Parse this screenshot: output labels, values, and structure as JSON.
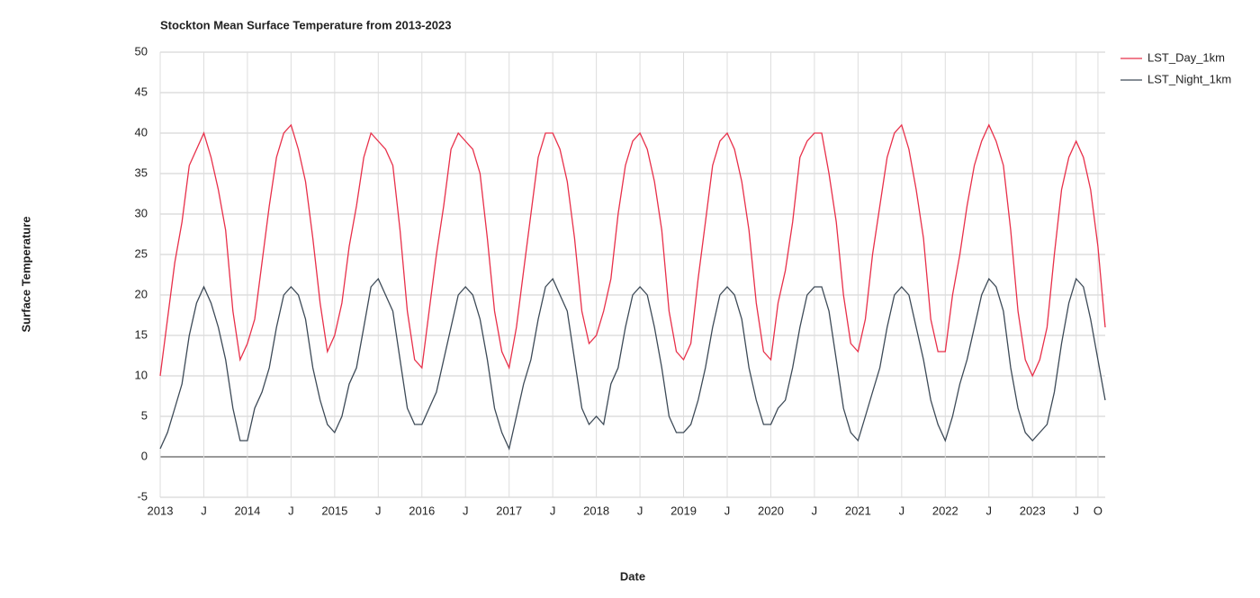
{
  "chart_data": {
    "type": "line",
    "title": "Stockton Mean Surface Temperature from 2013-2023",
    "x_label": "Date",
    "y_label": "Surface Temperature",
    "x": [
      "2013-01",
      "2013-02",
      "2013-03",
      "2013-04",
      "2013-05",
      "2013-06",
      "2013-07",
      "2013-08",
      "2013-09",
      "2013-10",
      "2013-11",
      "2013-12",
      "2014-01",
      "2014-02",
      "2014-03",
      "2014-04",
      "2014-05",
      "2014-06",
      "2014-07",
      "2014-08",
      "2014-09",
      "2014-10",
      "2014-11",
      "2014-12",
      "2015-01",
      "2015-02",
      "2015-03",
      "2015-04",
      "2015-05",
      "2015-06",
      "2015-07",
      "2015-08",
      "2015-09",
      "2015-10",
      "2015-11",
      "2015-12",
      "2016-01",
      "2016-02",
      "2016-03",
      "2016-04",
      "2016-05",
      "2016-06",
      "2016-07",
      "2016-08",
      "2016-09",
      "2016-10",
      "2016-11",
      "2016-12",
      "2017-01",
      "2017-02",
      "2017-03",
      "2017-04",
      "2017-05",
      "2017-06",
      "2017-07",
      "2017-08",
      "2017-09",
      "2017-10",
      "2017-11",
      "2017-12",
      "2018-01",
      "2018-02",
      "2018-03",
      "2018-04",
      "2018-05",
      "2018-06",
      "2018-07",
      "2018-08",
      "2018-09",
      "2018-10",
      "2018-11",
      "2018-12",
      "2019-01",
      "2019-02",
      "2019-03",
      "2019-04",
      "2019-05",
      "2019-06",
      "2019-07",
      "2019-08",
      "2019-09",
      "2019-10",
      "2019-11",
      "2019-12",
      "2020-01",
      "2020-02",
      "2020-03",
      "2020-04",
      "2020-05",
      "2020-06",
      "2020-07",
      "2020-08",
      "2020-09",
      "2020-10",
      "2020-11",
      "2020-12",
      "2021-01",
      "2021-02",
      "2021-03",
      "2021-04",
      "2021-05",
      "2021-06",
      "2021-07",
      "2021-08",
      "2021-09",
      "2021-10",
      "2021-11",
      "2021-12",
      "2022-01",
      "2022-02",
      "2022-03",
      "2022-04",
      "2022-05",
      "2022-06",
      "2022-07",
      "2022-08",
      "2022-09",
      "2022-10",
      "2022-11",
      "2022-12",
      "2023-01",
      "2023-02",
      "2023-03",
      "2023-04",
      "2023-05",
      "2023-06",
      "2023-07",
      "2023-08",
      "2023-09",
      "2023-10",
      "2023-11"
    ],
    "series": [
      {
        "name": "LST_Day_1km",
        "color": "#e8304a",
        "values": [
          10,
          17,
          24,
          29,
          36,
          38,
          40,
          37,
          33,
          28,
          18,
          12,
          14,
          17,
          24,
          31,
          37,
          40,
          41,
          38,
          34,
          27,
          19,
          13,
          15,
          19,
          26,
          31,
          37,
          40,
          39,
          38,
          36,
          28,
          18,
          12,
          11,
          18,
          25,
          31,
          38,
          40,
          39,
          38,
          35,
          27,
          18,
          13,
          11,
          16,
          23,
          30,
          37,
          40,
          40,
          38,
          34,
          27,
          18,
          14,
          15,
          18,
          22,
          30,
          36,
          39,
          40,
          38,
          34,
          28,
          18,
          13,
          12,
          14,
          22,
          29,
          36,
          39,
          40,
          38,
          34,
          28,
          19,
          13,
          12,
          19,
          23,
          29,
          37,
          39,
          40,
          40,
          35,
          29,
          20,
          14,
          13,
          17,
          25,
          31,
          37,
          40,
          41,
          38,
          33,
          27,
          17,
          13,
          13,
          20,
          25,
          31,
          36,
          39,
          41,
          39,
          36,
          28,
          18,
          12,
          10,
          12,
          16,
          25,
          33,
          37,
          39,
          37,
          33,
          26,
          16
        ]
      },
      {
        "name": "LST_Night_1km",
        "color": "#3d4a57",
        "values": [
          1,
          3,
          6,
          9,
          15,
          19,
          21,
          19,
          16,
          12,
          6,
          2,
          2,
          6,
          8,
          11,
          16,
          20,
          21,
          20,
          17,
          11,
          7,
          4,
          3,
          5,
          9,
          11,
          16,
          21,
          22,
          20,
          18,
          12,
          6,
          4,
          4,
          6,
          8,
          12,
          16,
          20,
          21,
          20,
          17,
          12,
          6,
          3,
          1,
          5,
          9,
          12,
          17,
          21,
          22,
          20,
          18,
          12,
          6,
          4,
          5,
          4,
          9,
          11,
          16,
          20,
          21,
          20,
          16,
          11,
          5,
          3,
          3,
          4,
          7,
          11,
          16,
          20,
          21,
          20,
          17,
          11,
          7,
          4,
          4,
          6,
          7,
          11,
          16,
          20,
          21,
          21,
          18,
          12,
          6,
          3,
          2,
          5,
          8,
          11,
          16,
          20,
          21,
          20,
          16,
          12,
          7,
          4,
          2,
          5,
          9,
          12,
          16,
          20,
          22,
          21,
          18,
          11,
          6,
          3,
          2,
          3,
          4,
          8,
          14,
          19,
          22,
          21,
          17,
          12,
          7
        ]
      }
    ],
    "xlim": [
      "2013-01",
      "2023-11"
    ],
    "xticks": [
      {
        "value": "2013-01",
        "label": "2013"
      },
      {
        "value": "2013-07",
        "label": "J"
      },
      {
        "value": "2014-01",
        "label": "2014"
      },
      {
        "value": "2014-07",
        "label": "J"
      },
      {
        "value": "2015-01",
        "label": "2015"
      },
      {
        "value": "2015-07",
        "label": "J"
      },
      {
        "value": "2016-01",
        "label": "2016"
      },
      {
        "value": "2016-07",
        "label": "J"
      },
      {
        "value": "2017-01",
        "label": "2017"
      },
      {
        "value": "2017-07",
        "label": "J"
      },
      {
        "value": "2018-01",
        "label": "2018"
      },
      {
        "value": "2018-07",
        "label": "J"
      },
      {
        "value": "2019-01",
        "label": "2019"
      },
      {
        "value": "2019-07",
        "label": "J"
      },
      {
        "value": "2020-01",
        "label": "2020"
      },
      {
        "value": "2020-07",
        "label": "J"
      },
      {
        "value": "2021-01",
        "label": "2021"
      },
      {
        "value": "2021-07",
        "label": "J"
      },
      {
        "value": "2022-01",
        "label": "2022"
      },
      {
        "value": "2022-07",
        "label": "J"
      },
      {
        "value": "2023-01",
        "label": "2023"
      },
      {
        "value": "2023-07",
        "label": "J"
      },
      {
        "value": "2023-10",
        "label": "O"
      }
    ],
    "ylim": [
      -5,
      50
    ],
    "yticks": [
      -5,
      0,
      5,
      10,
      15,
      20,
      25,
      30,
      35,
      40,
      45,
      50
    ],
    "grid": true,
    "legend": "right"
  }
}
